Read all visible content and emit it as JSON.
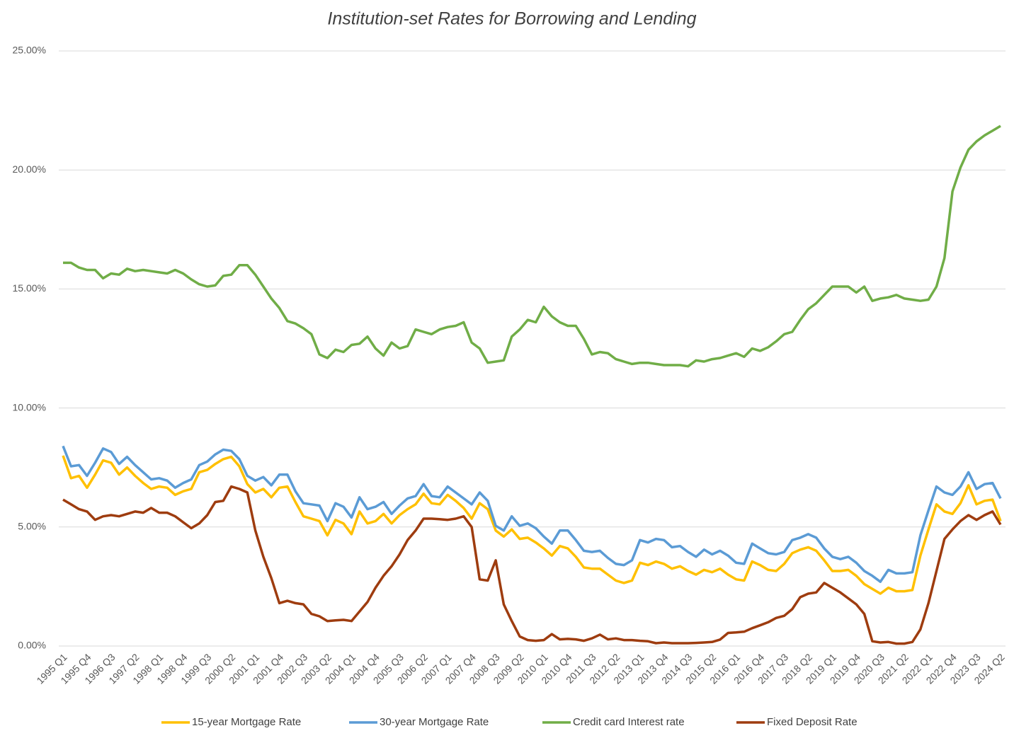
{
  "chart_data": {
    "type": "line",
    "title": "Institution-set Rates for Borrowing and Lending",
    "categories": [
      "1995 Q1",
      null,
      null,
      "1995 Q4",
      null,
      null,
      "1996 Q3",
      null,
      null,
      "1997 Q2",
      null,
      null,
      "1998 Q1",
      null,
      null,
      "1998 Q4",
      null,
      null,
      "1999 Q3",
      null,
      null,
      "2000 Q2",
      null,
      null,
      "2001 Q1",
      null,
      null,
      "2001 Q4",
      null,
      null,
      "2002 Q3",
      null,
      null,
      "2003 Q2",
      null,
      null,
      "2004 Q1",
      null,
      null,
      "2004 Q4",
      null,
      null,
      "2005 Q3",
      null,
      null,
      "2006 Q2",
      null,
      null,
      "2007 Q1",
      null,
      null,
      "2007 Q4",
      null,
      null,
      "2008 Q3",
      null,
      null,
      "2009 Q2",
      null,
      null,
      "2010 Q1",
      null,
      null,
      "2010 Q4",
      null,
      null,
      "2011 Q3",
      null,
      null,
      "2012 Q2",
      null,
      null,
      "2013 Q1",
      null,
      null,
      "2013 Q4",
      null,
      null,
      "2014 Q3",
      null,
      null,
      "2015 Q2",
      null,
      null,
      "2016 Q1",
      null,
      null,
      "2016 Q4",
      null,
      null,
      "2017 Q3",
      null,
      null,
      "2018 Q2",
      null,
      null,
      "2019 Q1",
      null,
      null,
      "2019 Q4",
      null,
      null,
      "2020 Q3",
      null,
      null,
      "2021 Q2",
      null,
      null,
      "2022 Q1",
      null,
      null,
      "2022 Q4",
      null,
      null,
      "2023 Q3",
      null,
      null,
      "2024 Q2"
    ],
    "series": [
      {
        "name": "15-year Mortgage Rate",
        "color": "#ffc000",
        "values": [
          8.0,
          7.05,
          7.15,
          6.65,
          7.2,
          7.8,
          7.7,
          7.2,
          7.5,
          7.15,
          6.85,
          6.6,
          6.7,
          6.65,
          6.35,
          6.5,
          6.6,
          7.3,
          7.4,
          7.65,
          7.85,
          7.95,
          7.55,
          6.8,
          6.45,
          6.6,
          6.25,
          6.65,
          6.7,
          6.05,
          5.45,
          5.35,
          5.25,
          4.65,
          5.3,
          5.15,
          4.7,
          5.65,
          5.15,
          5.25,
          5.55,
          5.15,
          5.5,
          5.75,
          5.95,
          6.4,
          6.0,
          5.95,
          6.35,
          6.1,
          5.8,
          5.35,
          6.0,
          5.75,
          4.85,
          4.6,
          4.9,
          4.5,
          4.55,
          4.35,
          4.1,
          3.8,
          4.2,
          4.1,
          3.75,
          3.3,
          3.25,
          3.25,
          3.0,
          2.75,
          2.65,
          2.75,
          3.5,
          3.4,
          3.55,
          3.45,
          3.25,
          3.35,
          3.15,
          3.0,
          3.2,
          3.1,
          3.25,
          3.0,
          2.8,
          2.75,
          3.55,
          3.4,
          3.2,
          3.15,
          3.45,
          3.9,
          4.05,
          4.15,
          4.0,
          3.6,
          3.15,
          3.15,
          3.2,
          2.95,
          2.6,
          2.4,
          2.2,
          2.45,
          2.3,
          2.3,
          2.35,
          3.8,
          4.9,
          5.95,
          5.65,
          5.55,
          6.0,
          6.75,
          5.95,
          6.1,
          6.15,
          5.25
        ]
      },
      {
        "name": "30-year Mortgage Rate",
        "color": "#5b9bd5",
        "values": [
          8.4,
          7.55,
          7.6,
          7.15,
          7.7,
          8.3,
          8.15,
          7.65,
          7.95,
          7.6,
          7.3,
          7.0,
          7.05,
          6.95,
          6.65,
          6.85,
          7.0,
          7.6,
          7.75,
          8.05,
          8.25,
          8.2,
          7.85,
          7.15,
          6.95,
          7.1,
          6.75,
          7.2,
          7.2,
          6.5,
          6.0,
          5.95,
          5.9,
          5.25,
          6.0,
          5.85,
          5.4,
          6.25,
          5.75,
          5.85,
          6.05,
          5.55,
          5.9,
          6.2,
          6.3,
          6.8,
          6.3,
          6.25,
          6.7,
          6.45,
          6.2,
          5.95,
          6.45,
          6.1,
          5.05,
          4.85,
          5.45,
          5.05,
          5.15,
          4.95,
          4.6,
          4.3,
          4.85,
          4.85,
          4.45,
          4.0,
          3.95,
          4.0,
          3.7,
          3.45,
          3.4,
          3.6,
          4.45,
          4.35,
          4.5,
          4.45,
          4.15,
          4.2,
          3.95,
          3.75,
          4.05,
          3.85,
          4.0,
          3.8,
          3.5,
          3.45,
          4.3,
          4.1,
          3.9,
          3.85,
          3.95,
          4.45,
          4.55,
          4.7,
          4.55,
          4.1,
          3.75,
          3.65,
          3.75,
          3.5,
          3.15,
          2.95,
          2.7,
          3.2,
          3.05,
          3.05,
          3.1,
          4.65,
          5.7,
          6.7,
          6.45,
          6.35,
          6.7,
          7.3,
          6.6,
          6.8,
          6.85,
          6.2
        ]
      },
      {
        "name": "Credit card Interest rate",
        "color": "#70ad47",
        "values": [
          16.1,
          16.1,
          15.9,
          15.8,
          15.8,
          15.45,
          15.65,
          15.6,
          15.85,
          15.75,
          15.8,
          15.75,
          15.7,
          15.65,
          15.8,
          15.65,
          15.4,
          15.2,
          15.1,
          15.15,
          15.55,
          15.6,
          16.0,
          16.0,
          15.6,
          15.1,
          14.6,
          14.2,
          13.65,
          13.55,
          13.35,
          13.1,
          12.25,
          12.1,
          12.45,
          12.35,
          12.65,
          12.7,
          13.0,
          12.5,
          12.2,
          12.75,
          12.5,
          12.6,
          13.3,
          13.2,
          13.1,
          13.3,
          13.4,
          13.45,
          13.6,
          12.75,
          12.5,
          11.9,
          11.95,
          12.0,
          13.0,
          13.3,
          13.7,
          13.6,
          14.25,
          13.85,
          13.6,
          13.45,
          13.45,
          12.9,
          12.25,
          12.35,
          12.3,
          12.05,
          11.95,
          11.85,
          11.9,
          11.9,
          11.85,
          11.8,
          11.8,
          11.8,
          11.75,
          12.0,
          11.95,
          12.05,
          12.1,
          12.2,
          12.3,
          12.15,
          12.5,
          12.4,
          12.55,
          12.8,
          13.1,
          13.2,
          13.7,
          14.15,
          14.4,
          14.75,
          15.1,
          15.1,
          15.1,
          14.85,
          15.1,
          14.5,
          14.6,
          14.65,
          14.75,
          14.6,
          14.55,
          14.5,
          14.55,
          15.1,
          16.3,
          19.1,
          20.1,
          20.85,
          21.2,
          21.45,
          21.65,
          21.85
        ]
      },
      {
        "name": "Fixed Deposit Rate",
        "color": "#9e3c0f",
        "values": [
          6.15,
          5.95,
          5.75,
          5.65,
          5.3,
          5.45,
          5.5,
          5.45,
          5.55,
          5.65,
          5.6,
          5.8,
          5.6,
          5.6,
          5.45,
          5.2,
          4.95,
          5.15,
          5.5,
          6.05,
          6.1,
          6.7,
          6.6,
          6.45,
          4.85,
          3.75,
          2.85,
          1.8,
          1.9,
          1.8,
          1.75,
          1.35,
          1.25,
          1.05,
          1.08,
          1.1,
          1.05,
          1.45,
          1.85,
          2.45,
          2.95,
          3.35,
          3.85,
          4.45,
          4.85,
          5.35,
          5.35,
          5.33,
          5.3,
          5.35,
          5.45,
          5.0,
          2.8,
          2.75,
          3.6,
          1.75,
          1.05,
          0.4,
          0.25,
          0.22,
          0.25,
          0.5,
          0.28,
          0.3,
          0.28,
          0.22,
          0.32,
          0.48,
          0.28,
          0.32,
          0.25,
          0.25,
          0.22,
          0.2,
          0.12,
          0.15,
          0.12,
          0.12,
          0.12,
          0.13,
          0.15,
          0.17,
          0.27,
          0.55,
          0.57,
          0.6,
          0.75,
          0.87,
          1.0,
          1.18,
          1.27,
          1.55,
          2.05,
          2.2,
          2.25,
          2.65,
          2.45,
          2.25,
          2.0,
          1.75,
          1.35,
          0.2,
          0.15,
          0.17,
          0.1,
          0.1,
          0.17,
          0.7,
          1.8,
          3.15,
          4.5,
          4.9,
          5.25,
          5.5,
          5.3,
          5.5,
          5.65,
          5.1
        ]
      }
    ],
    "ylim": [
      0,
      25
    ],
    "yticks": [
      {
        "value": 0,
        "label": "0.00%"
      },
      {
        "value": 5,
        "label": "5.00%"
      },
      {
        "value": 10,
        "label": "10.00%"
      },
      {
        "value": 15,
        "label": "15.00%"
      },
      {
        "value": 20,
        "label": "20.00%"
      },
      {
        "value": 25,
        "label": "25.00%"
      }
    ],
    "grid": true,
    "legend": "bottom"
  }
}
